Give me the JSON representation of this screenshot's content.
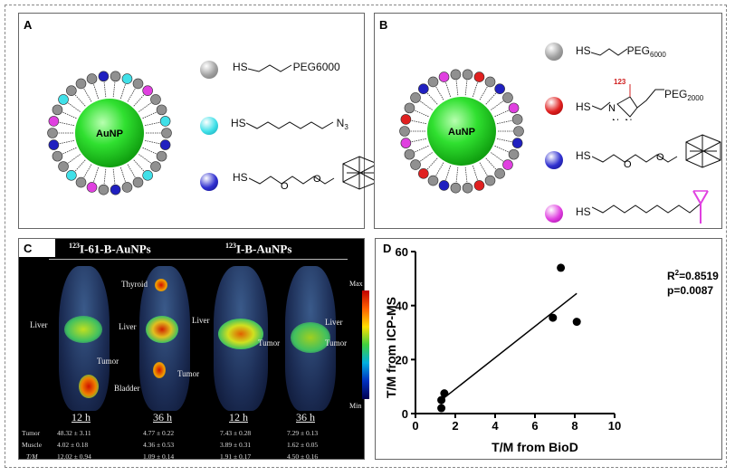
{
  "panels": {
    "A": {
      "label": "A",
      "core_label": "AuNP",
      "ligands": [
        {
          "color": "#a0a0a0",
          "formula": "HS–(CH2)3–PEG6000",
          "text_prefix": "HS",
          "text_suffix": "PEG6000"
        },
        {
          "color": "#40e0e8",
          "formula": "HS–(CH2)8–N3",
          "text_prefix": "HS",
          "text_suffix": "N",
          "suffix_sub": "3"
        },
        {
          "color": "#2020c0",
          "formula": "HS–CH2CH2–O–CH2CH2–O–CH2–carborane",
          "text_prefix": "HS",
          "o1": "O",
          "o2": "O"
        }
      ]
    },
    "B": {
      "label": "B",
      "core_label": "AuNP",
      "ligands": [
        {
          "color": "#a0a0a0",
          "text_prefix": "HS",
          "text_suffix": "PEG",
          "suffix_sub": "6000"
        },
        {
          "color": "#e02020",
          "text_prefix": "HS",
          "iodine_label": "123I",
          "iodine_mass": "123",
          "iodine_symbol": "I",
          "n1": "N",
          "n2": "N=N",
          "text_suffix": "PEG",
          "suffix_sub": "2000"
        },
        {
          "color": "#2020c0",
          "text_prefix": "HS",
          "o1": "O",
          "o2": "O"
        },
        {
          "color": "#e040e0",
          "text_prefix": "HS"
        }
      ]
    },
    "C": {
      "label": "C",
      "group1_title": "123I-61-B-AuNPs",
      "group1_mass": "123",
      "group1_name": "I-61-B-AuNPs",
      "group2_title": "123I-B-AuNPs",
      "group2_mass": "123",
      "group2_name": "I-B-AuNPs",
      "colorbar": {
        "max": "Max",
        "min": "Min"
      },
      "annotations": {
        "liver": "Liver",
        "tumor": "Tumor",
        "thyroid": "Thyroid",
        "bladder": "Bladder"
      },
      "times": [
        "12 h",
        "36 h",
        "12 h",
        "36 h"
      ],
      "row_labels": [
        "Tumor",
        "Muscle",
        "T/M"
      ],
      "table": [
        [
          "48.32 ± 3.11",
          "4.77 ± 0.22",
          "7.43 ± 0.28",
          "7.29 ± 0.13"
        ],
        [
          "4.02 ± 0.18",
          "4.36 ± 0.53",
          "3.89 ± 0.31",
          "1.62 ± 0.05"
        ],
        [
          "12.02 ± 0.94",
          "1.09 ± 0.14",
          "1.91 ± 0.17",
          "4.50 ± 0.16"
        ]
      ]
    },
    "D": {
      "label": "D",
      "r2_label": "R",
      "r2_value": "=0.8519",
      "p_value": "p=0.0087",
      "xlabel": "T/M from BioD",
      "ylabel": "T/M from ICP-MS",
      "xticks": [
        "0",
        "2",
        "4",
        "6",
        "8",
        "10"
      ],
      "yticks": [
        "0",
        "20",
        "40",
        "60"
      ]
    }
  },
  "chart_data": {
    "type": "scatter",
    "title": "",
    "xlabel": "T/M from BioD",
    "ylabel": "T/M from ICP-MS",
    "xlim": [
      0,
      10
    ],
    "ylim": [
      0,
      60
    ],
    "x": [
      1.3,
      1.3,
      1.45,
      6.9,
      7.3,
      8.1
    ],
    "y": [
      2,
      5,
      7.5,
      35.5,
      54,
      34
    ],
    "fit_line": {
      "x": [
        1.3,
        8.1
      ],
      "y": [
        5,
        44.5
      ]
    },
    "annotations": [
      "R²=0.8519",
      "p=0.0087"
    ],
    "grid": false
  }
}
